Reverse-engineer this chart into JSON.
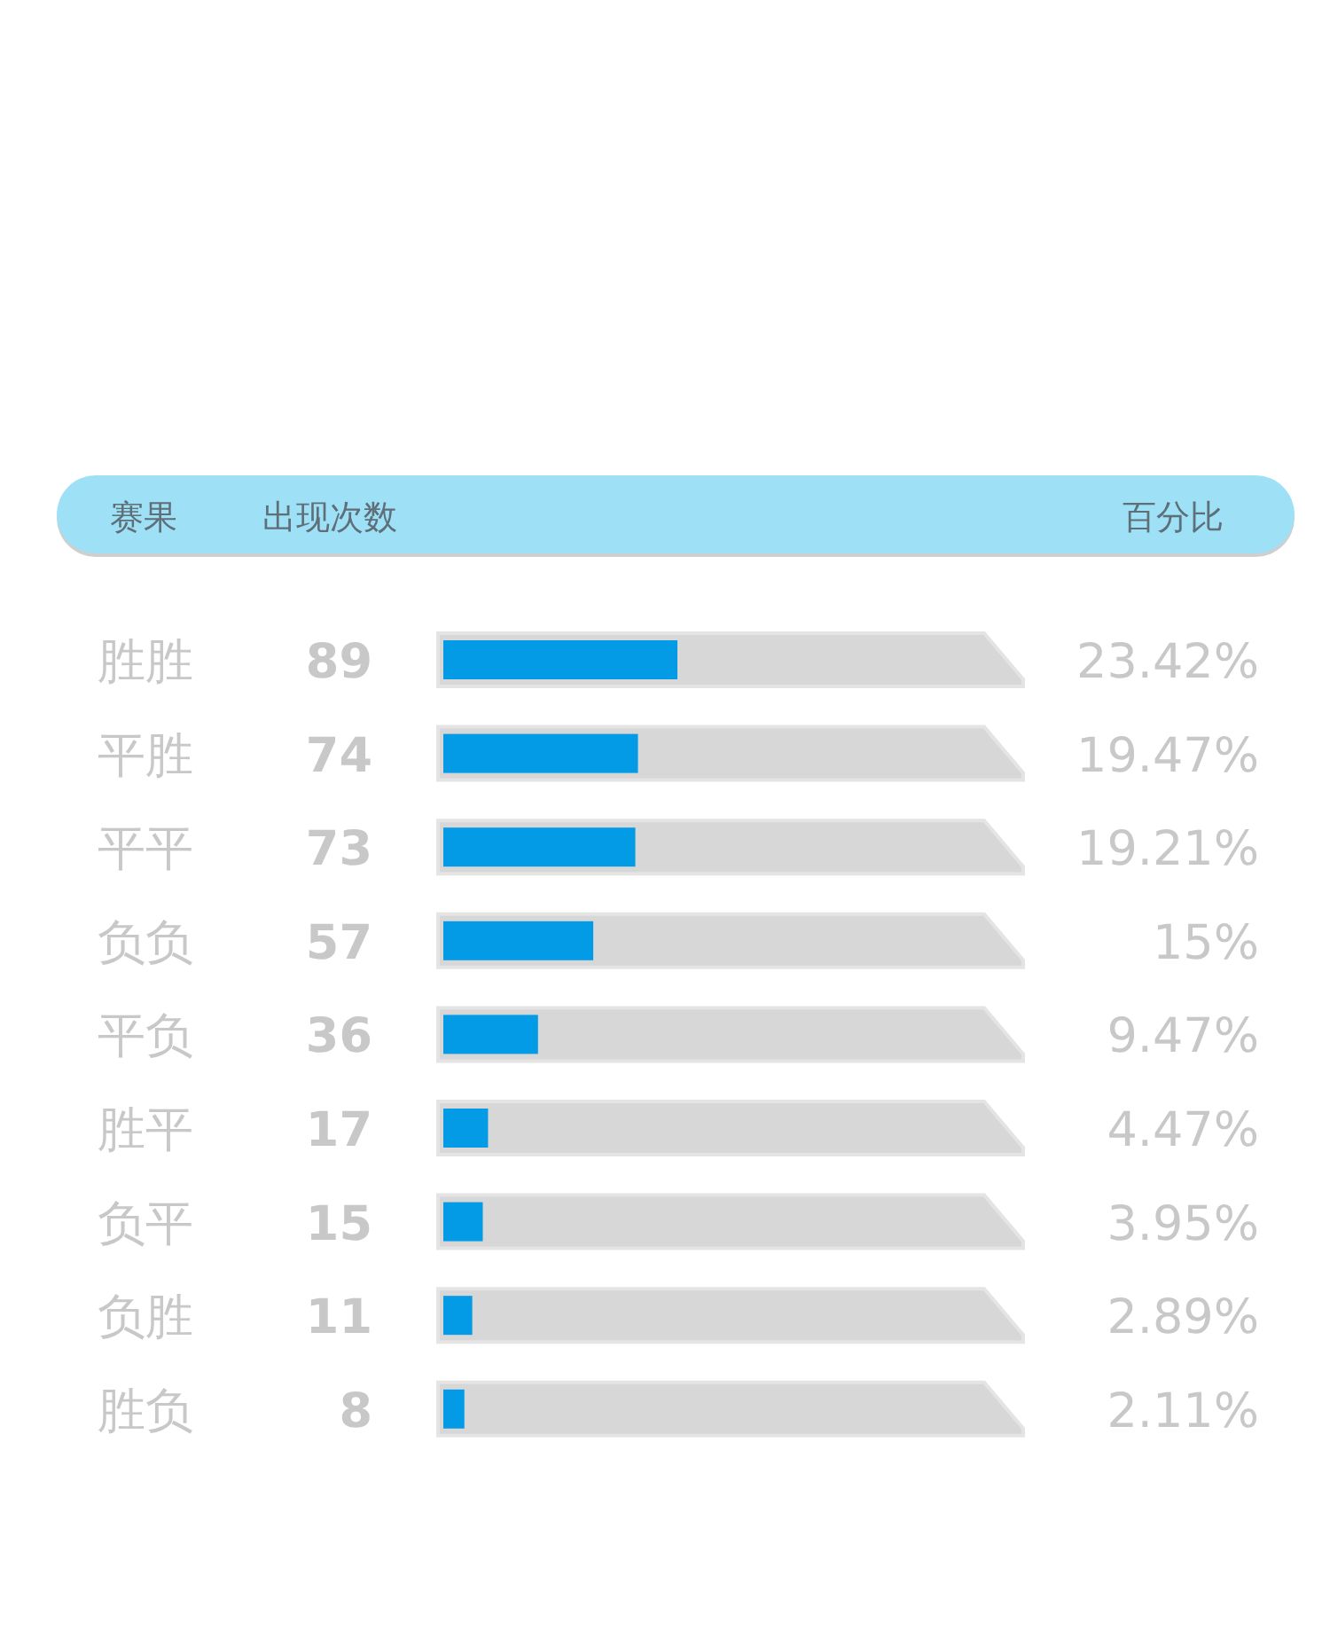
{
  "chart_data": {
    "type": "bar",
    "orientation": "horizontal",
    "ylabel": "赛果",
    "xlabel": "出现次数",
    "categories": [
      "胜胜",
      "平胜",
      "平平",
      "负负",
      "平负",
      "胜平",
      "负平",
      "负胜",
      "胜负"
    ],
    "values": [
      89,
      74,
      73,
      57,
      36,
      17,
      15,
      11,
      8
    ],
    "color": "#039be5",
    "data_labels": true,
    "annotations": [
      "百分比",
      "23.42%",
      "19.47%",
      "19.21%",
      "15%",
      "9.47%",
      "4.47%",
      "3.95%",
      "2.89%",
      "2.11%"
    ]
  }
}
